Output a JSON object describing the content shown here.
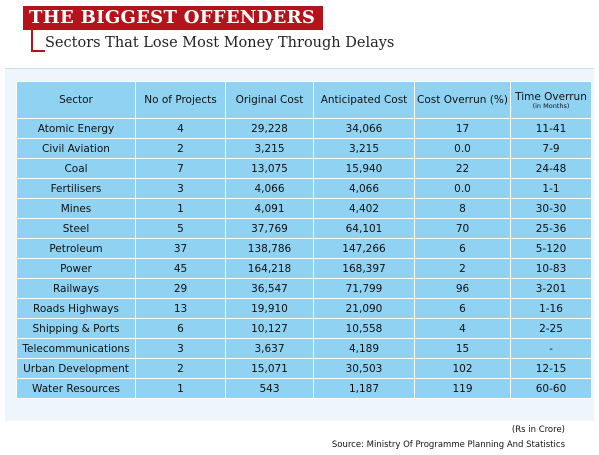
{
  "header": {
    "title": "THE BIGGEST OFFENDERS",
    "subtitle": "Sectors That Lose Most Money Through Delays"
  },
  "chart_data": {
    "type": "table",
    "columns": [
      "Sector",
      "No of Projects",
      "Original Cost",
      "Anticipated Cost",
      "Cost Overrun (%)",
      "Time Overrun"
    ],
    "time_overrun_unit": "(in Months)",
    "rows": [
      [
        "Atomic Energy",
        "4",
        "29,228",
        "34,066",
        "17",
        "11-41"
      ],
      [
        "Civil Aviation",
        "2",
        "3,215",
        "3,215",
        "0.0",
        "7-9"
      ],
      [
        "Coal",
        "7",
        "13,075",
        "15,940",
        "22",
        "24-48"
      ],
      [
        "Fertilisers",
        "3",
        "4,066",
        "4,066",
        "0.0",
        "1-1"
      ],
      [
        "Mines",
        "1",
        "4,091",
        "4,402",
        "8",
        "30-30"
      ],
      [
        "Steel",
        "5",
        "37,769",
        "64,101",
        "70",
        "25-36"
      ],
      [
        "Petroleum",
        "37",
        "138,786",
        "147,266",
        "6",
        "5-120"
      ],
      [
        "Power",
        "45",
        "164,218",
        "168,397",
        "2",
        "10-83"
      ],
      [
        "Railways",
        "29",
        "36,547",
        "71,799",
        "96",
        "3-201"
      ],
      [
        "Roads Highways",
        "13",
        "19,910",
        "21,090",
        "6",
        "1-16"
      ],
      [
        "Shipping & Ports",
        "6",
        "10,127",
        "10,558",
        "4",
        "2-25"
      ],
      [
        "Telecommunications",
        "3",
        "3,637",
        "4,189",
        "15",
        "-"
      ],
      [
        "Urban Development",
        "2",
        "15,071",
        "30,503",
        "102",
        "12-15"
      ],
      [
        "Water Resources",
        "1",
        "543",
        "1,187",
        "119",
        "60-60"
      ]
    ]
  },
  "footer": {
    "unit_note": "(Rs in Crore)",
    "source": "Source: Ministry Of Programme Planning And Statistics"
  },
  "colors": {
    "title_bg": "#b5121b",
    "table_bg": "#8fd2f2",
    "panel_bg": "#eff6fb"
  }
}
